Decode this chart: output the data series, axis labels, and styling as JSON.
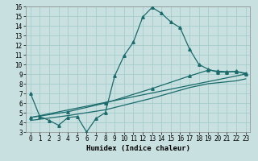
{
  "xlabel": "Humidex (Indice chaleur)",
  "xlim": [
    -0.5,
    23.5
  ],
  "ylim": [
    3,
    16
  ],
  "xticks": [
    0,
    1,
    2,
    3,
    4,
    5,
    6,
    7,
    8,
    9,
    10,
    11,
    12,
    13,
    14,
    15,
    16,
    17,
    18,
    19,
    20,
    21,
    22,
    23
  ],
  "yticks": [
    3,
    4,
    5,
    6,
    7,
    8,
    9,
    10,
    11,
    12,
    13,
    14,
    15,
    16
  ],
  "bg_color": "#c8e0e0",
  "grid_color": "#a0c8c8",
  "line_color": "#1a6b6b",
  "line1_x": [
    0,
    1,
    2,
    3,
    4,
    5,
    6,
    7,
    8,
    9,
    10,
    11,
    12,
    13,
    14,
    15,
    16,
    17,
    18,
    19,
    20,
    21,
    22,
    23
  ],
  "line1_y": [
    7.0,
    4.6,
    4.2,
    3.7,
    4.5,
    4.6,
    3.0,
    4.4,
    5.0,
    8.8,
    10.9,
    12.3,
    14.9,
    15.9,
    15.3,
    14.4,
    13.8,
    11.6,
    10.0,
    9.5,
    9.2,
    9.2,
    9.3,
    9.0
  ],
  "line2_x": [
    0,
    23
  ],
  "line2_y": [
    4.5,
    9.0
  ],
  "line3_x": [
    0,
    4,
    8,
    13,
    17,
    19,
    20,
    21,
    22,
    23
  ],
  "line3_y": [
    4.5,
    5.1,
    6.0,
    7.5,
    8.8,
    9.4,
    9.3,
    9.25,
    9.25,
    9.1
  ],
  "line4_x": [
    0,
    4,
    8,
    13,
    17,
    19,
    20,
    21,
    22,
    23
  ],
  "line4_y": [
    4.2,
    4.7,
    5.3,
    6.5,
    7.6,
    8.0,
    8.1,
    8.2,
    8.3,
    8.5
  ],
  "marker": "^",
  "markersize": 2.5,
  "linewidth": 0.9,
  "tick_fontsize": 5.5,
  "label_fontsize": 6.5
}
